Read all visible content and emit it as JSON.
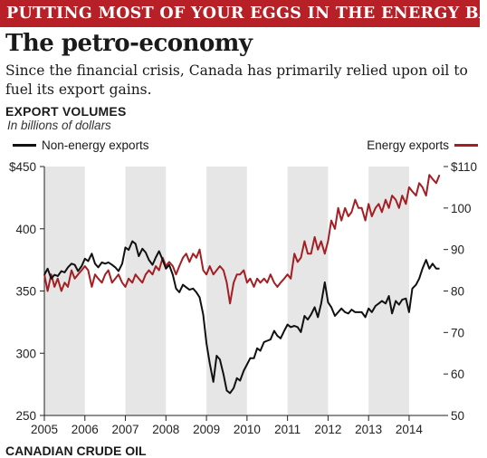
{
  "header": {
    "banner": "PUTTING MOST OF YOUR EGGS IN THE ENERGY BASKET",
    "title": "The petro-economy",
    "dek": "Since the financial crisis, Canada has primarily relied upon oil to fuel its export gains."
  },
  "footer": {
    "next_section": "CANADIAN CRUDE OIL"
  },
  "colors": {
    "banner": "#b62026",
    "non_energy": "#111111",
    "energy": "#a31f24",
    "shade": "#e6e6e6"
  },
  "chart_data": {
    "type": "line",
    "title": "EXPORT VOLUMES",
    "subtitle": "In billions of dollars",
    "legend": [
      "Non-energy exports",
      "Energy exports"
    ],
    "x_ticks": [
      "2005",
      "2006",
      "2007",
      "2008",
      "2009",
      "2010",
      "2011",
      "2012",
      "2013",
      "2014"
    ],
    "xlim": [
      2005,
      2014.85
    ],
    "shaded_years": [
      2005,
      2007,
      2009,
      2011,
      2013
    ],
    "y_left": {
      "label": "Non-energy exports",
      "lim": [
        250,
        450
      ],
      "ticks": [
        "$450",
        "400",
        "350",
        "300",
        "250"
      ],
      "values": [
        450,
        400,
        350,
        300,
        250
      ]
    },
    "y_right": {
      "label": "Energy exports",
      "lim": [
        50,
        110
      ],
      "ticks": [
        "$110",
        "100",
        "90",
        "80",
        "70",
        "60",
        "50"
      ],
      "values": [
        110,
        100,
        90,
        80,
        70,
        60,
        50
      ]
    },
    "series": [
      {
        "name": "Non-energy exports",
        "axis": "left",
        "x": [
          2005.0,
          2005.08,
          2005.17,
          2005.25,
          2005.33,
          2005.42,
          2005.5,
          2005.58,
          2005.67,
          2005.75,
          2005.83,
          2005.92,
          2006.0,
          2006.08,
          2006.17,
          2006.25,
          2006.33,
          2006.42,
          2006.5,
          2006.58,
          2006.67,
          2006.75,
          2006.83,
          2006.92,
          2007.0,
          2007.08,
          2007.17,
          2007.25,
          2007.33,
          2007.42,
          2007.5,
          2007.58,
          2007.67,
          2007.75,
          2007.83,
          2007.92,
          2008.0,
          2008.08,
          2008.17,
          2008.25,
          2008.33,
          2008.42,
          2008.5,
          2008.58,
          2008.67,
          2008.75,
          2008.83,
          2008.92,
          2009.0,
          2009.08,
          2009.17,
          2009.25,
          2009.33,
          2009.42,
          2009.5,
          2009.58,
          2009.67,
          2009.75,
          2009.83,
          2009.92,
          2010.0,
          2010.08,
          2010.17,
          2010.25,
          2010.33,
          2010.42,
          2010.5,
          2010.58,
          2010.67,
          2010.75,
          2010.83,
          2010.92,
          2011.0,
          2011.08,
          2011.17,
          2011.25,
          2011.33,
          2011.42,
          2011.5,
          2011.58,
          2011.67,
          2011.75,
          2011.83,
          2011.92,
          2012.0,
          2012.08,
          2012.17,
          2012.25,
          2012.33,
          2012.42,
          2012.5,
          2012.58,
          2012.67,
          2012.75,
          2012.83,
          2012.92,
          2013.0,
          2013.08,
          2013.17,
          2013.25,
          2013.33,
          2013.42,
          2013.5,
          2013.58,
          2013.67,
          2013.75,
          2013.83,
          2013.92,
          2014.0,
          2014.08,
          2014.17,
          2014.25,
          2014.33,
          2014.42,
          2014.5,
          2014.58,
          2014.67,
          2014.75
        ],
        "values": [
          363,
          368,
          360,
          363,
          362,
          366,
          365,
          369,
          372,
          371,
          366,
          370,
          376,
          374,
          380,
          372,
          369,
          373,
          372,
          373,
          371,
          369,
          366,
          372,
          385,
          383,
          390,
          388,
          378,
          384,
          381,
          375,
          371,
          377,
          382,
          375,
          368,
          371,
          363,
          352,
          349,
          355,
          353,
          351,
          352,
          349,
          345,
          331,
          308,
          292,
          277,
          298,
          295,
          283,
          270,
          268,
          272,
          280,
          278,
          286,
          291,
          296,
          296,
          304,
          302,
          309,
          310,
          311,
          318,
          314,
          312,
          318,
          323,
          321,
          322,
          321,
          317,
          330,
          327,
          331,
          337,
          329,
          340,
          357,
          341,
          337,
          330,
          333,
          336,
          333,
          332,
          335,
          333,
          333,
          333,
          329,
          336,
          333,
          338,
          340,
          342,
          340,
          346,
          332,
          342,
          339,
          343,
          344,
          333,
          352,
          355,
          360,
          368,
          375,
          368,
          372,
          368,
          368
        ]
      },
      {
        "name": "Energy exports",
        "axis": "right",
        "x": [
          2005.0,
          2005.08,
          2005.17,
          2005.25,
          2005.33,
          2005.42,
          2005.5,
          2005.58,
          2005.67,
          2005.75,
          2005.83,
          2005.92,
          2006.0,
          2006.08,
          2006.17,
          2006.25,
          2006.33,
          2006.42,
          2006.5,
          2006.58,
          2006.67,
          2006.75,
          2006.83,
          2006.92,
          2007.0,
          2007.08,
          2007.17,
          2007.25,
          2007.33,
          2007.42,
          2007.5,
          2007.58,
          2007.67,
          2007.75,
          2007.83,
          2007.92,
          2008.0,
          2008.08,
          2008.17,
          2008.25,
          2008.33,
          2008.42,
          2008.5,
          2008.58,
          2008.67,
          2008.75,
          2008.83,
          2008.92,
          2009.0,
          2009.08,
          2009.17,
          2009.25,
          2009.33,
          2009.42,
          2009.5,
          2009.58,
          2009.67,
          2009.75,
          2009.83,
          2009.92,
          2010.0,
          2010.08,
          2010.17,
          2010.25,
          2010.33,
          2010.42,
          2010.5,
          2010.58,
          2010.67,
          2010.75,
          2010.83,
          2010.92,
          2011.0,
          2011.08,
          2011.17,
          2011.25,
          2011.33,
          2011.42,
          2011.5,
          2011.58,
          2011.67,
          2011.75,
          2011.83,
          2011.92,
          2012.0,
          2012.08,
          2012.17,
          2012.25,
          2012.33,
          2012.42,
          2012.5,
          2012.58,
          2012.67,
          2012.75,
          2012.83,
          2012.92,
          2013.0,
          2013.08,
          2013.17,
          2013.25,
          2013.33,
          2013.42,
          2013.5,
          2013.58,
          2013.67,
          2013.75,
          2013.83,
          2013.92,
          2014.0,
          2014.08,
          2014.17,
          2014.25,
          2014.33,
          2014.42,
          2014.5,
          2014.58,
          2014.67,
          2014.75
        ],
        "values": [
          84,
          80,
          84,
          81,
          83,
          80,
          82,
          81,
          85,
          83,
          84,
          85,
          86,
          85,
          81,
          84,
          83,
          82,
          84,
          85,
          82,
          83,
          84,
          82,
          81,
          83,
          82,
          84,
          83,
          82,
          84,
          85,
          84,
          86,
          85,
          88,
          86,
          87,
          86,
          84,
          86,
          88,
          89,
          87,
          89,
          88,
          90,
          85,
          84,
          86,
          84,
          85,
          86,
          85,
          82,
          77,
          82,
          84,
          84,
          85,
          82,
          83,
          81,
          83,
          82,
          83,
          82,
          84,
          82,
          81,
          82,
          83,
          84,
          83,
          89,
          87,
          88,
          92,
          89,
          89,
          93,
          90,
          92,
          89,
          92,
          97,
          95,
          100,
          97,
          100,
          98,
          99,
          102,
          100,
          100,
          97,
          101,
          98,
          100,
          101,
          99,
          102,
          100,
          103,
          102,
          100,
          103,
          101,
          105,
          104,
          103,
          106,
          105,
          103,
          108,
          107,
          106,
          108
        ]
      }
    ]
  }
}
